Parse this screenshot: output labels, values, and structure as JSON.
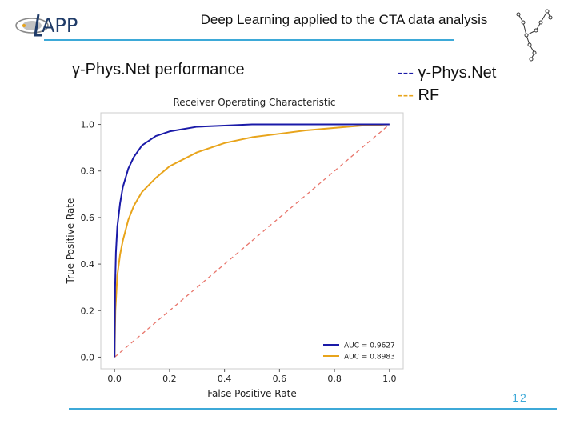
{
  "header": {
    "logo_text": "APP",
    "title": "Deep Learning applied to the CTA data analysis"
  },
  "section_title": "γ-Phys.Net performance",
  "side_legend": [
    {
      "dash": "---",
      "label": "γ-Phys.Net",
      "color": "#1a1aa8"
    },
    {
      "dash": "---",
      "label": "RF",
      "color": "#e8a41b"
    }
  ],
  "page_number": "12",
  "colors": {
    "accent": "#3da9d8",
    "series_1": "#1a1aa8",
    "series_2": "#e8a41b",
    "diagonal": "#e8756b"
  },
  "chart_data": {
    "type": "line",
    "title": "Receiver Operating Characteristic",
    "xlabel": "False Positive Rate",
    "ylabel": "True Positive Rate",
    "xlim": [
      -0.05,
      1.05
    ],
    "ylim": [
      -0.05,
      1.05
    ],
    "xticks": [
      "0.0",
      "0.2",
      "0.4",
      "0.6",
      "0.8",
      "1.0"
    ],
    "yticks": [
      "0.0",
      "0.2",
      "0.4",
      "0.6",
      "0.8",
      "1.0"
    ],
    "legend_position": "lower-right",
    "series": [
      {
        "name": "AUC = 0.9627",
        "color": "#1a1aa8",
        "x": [
          0.0,
          0.002,
          0.005,
          0.01,
          0.02,
          0.03,
          0.05,
          0.07,
          0.1,
          0.15,
          0.2,
          0.3,
          0.4,
          0.5,
          0.7,
          1.0
        ],
        "y": [
          0.0,
          0.3,
          0.45,
          0.56,
          0.66,
          0.73,
          0.81,
          0.86,
          0.91,
          0.95,
          0.97,
          0.99,
          0.995,
          1.0,
          1.0,
          1.0
        ]
      },
      {
        "name": "AUC = 0.8983",
        "color": "#e8a41b",
        "x": [
          0.0,
          0.003,
          0.01,
          0.02,
          0.03,
          0.05,
          0.07,
          0.1,
          0.15,
          0.2,
          0.3,
          0.4,
          0.5,
          0.6,
          0.7,
          0.8,
          0.9,
          1.0
        ],
        "y": [
          0.0,
          0.2,
          0.35,
          0.44,
          0.5,
          0.59,
          0.65,
          0.71,
          0.77,
          0.82,
          0.88,
          0.92,
          0.945,
          0.96,
          0.975,
          0.985,
          0.995,
          1.0
        ]
      },
      {
        "name": "",
        "color": "#e8756b",
        "dashed": true,
        "x": [
          0.0,
          1.0
        ],
        "y": [
          0.0,
          1.0
        ]
      }
    ]
  }
}
